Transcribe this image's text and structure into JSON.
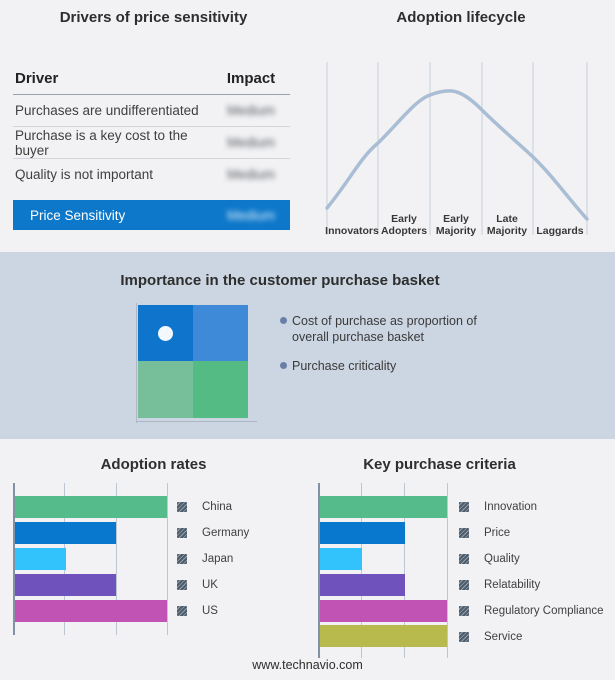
{
  "page": {
    "background": "#f2f2f4",
    "band_background": "#ccd6e2",
    "footer_url": "www.technavio.com"
  },
  "drivers_table": {
    "title": "Drivers of price sensitivity",
    "columns": [
      "Driver",
      "Impact"
    ],
    "rows": [
      {
        "driver": "Purchases are undifferentiated",
        "impact": "Medium"
      },
      {
        "driver": "Purchase is a key cost to the buyer",
        "impact": "Medium"
      },
      {
        "driver": "Quality is not important",
        "impact": "Medium"
      }
    ],
    "highlight_row": {
      "driver": "Price Sensitivity",
      "impact": "Medium",
      "color": "#0d78ca"
    },
    "impact_values_blurred": true
  },
  "lifecycle": {
    "title": "Adoption lifecycle",
    "stages": [
      "Innovators",
      "Early Adopters",
      "Early Majority",
      "Late Majority",
      "Laggards"
    ],
    "curve_color": "#a9bdd5"
  },
  "basket": {
    "title": "Importance in the customer purchase basket",
    "legend": [
      "Cost of purchase as proportion of overall purchase basket",
      "Purchase criticality"
    ],
    "bullet_color": "#6a7fa8",
    "quadrant_colors": {
      "top_left": "#0e74cc",
      "top_right": "#3e8ad8",
      "bottom_left": "#77bf9a",
      "bottom_right": "#55bb85"
    },
    "marker": "white dot in top-left (high importance) quadrant"
  },
  "chart_data": [
    {
      "type": "bar",
      "orientation": "horizontal",
      "title": "Adoption rates",
      "categories": [
        "China",
        "Germany",
        "Japan",
        "UK",
        "US"
      ],
      "values": [
        100,
        66.7,
        33.3,
        66.7,
        100
      ],
      "xlim": [
        0,
        100
      ],
      "gridlines": [
        33.3,
        66.7,
        100
      ],
      "colors": [
        "#55bb8a",
        "#0778ce",
        "#33c3fc",
        "#7052bd",
        "#c053b3"
      ],
      "legend_position": "right",
      "value_labels_shown": false
    },
    {
      "type": "bar",
      "orientation": "horizontal",
      "title": "Key purchase criteria",
      "categories": [
        "Innovation",
        "Price",
        "Quality",
        "Relatability",
        "Regulatory Compliance",
        "Service"
      ],
      "values": [
        100,
        66.7,
        33.3,
        66.7,
        100,
        100
      ],
      "xlim": [
        0,
        100
      ],
      "gridlines": [
        33.3,
        66.7,
        100
      ],
      "colors": [
        "#55bb8a",
        "#0778ce",
        "#33c3fc",
        "#7052bd",
        "#c053b3",
        "#b9ba4e"
      ],
      "legend_position": "right",
      "value_labels_shown": false
    },
    {
      "type": "line",
      "title": "Adoption lifecycle",
      "x_stage_units": [
        0,
        1,
        2,
        2.4,
        3,
        4,
        5
      ],
      "y_normalized": [
        0.1,
        0.6,
        0.97,
        1.0,
        0.85,
        0.49,
        0.02
      ],
      "note": "conceptual bell curve over the five adopter stages, no numeric axes"
    }
  ]
}
